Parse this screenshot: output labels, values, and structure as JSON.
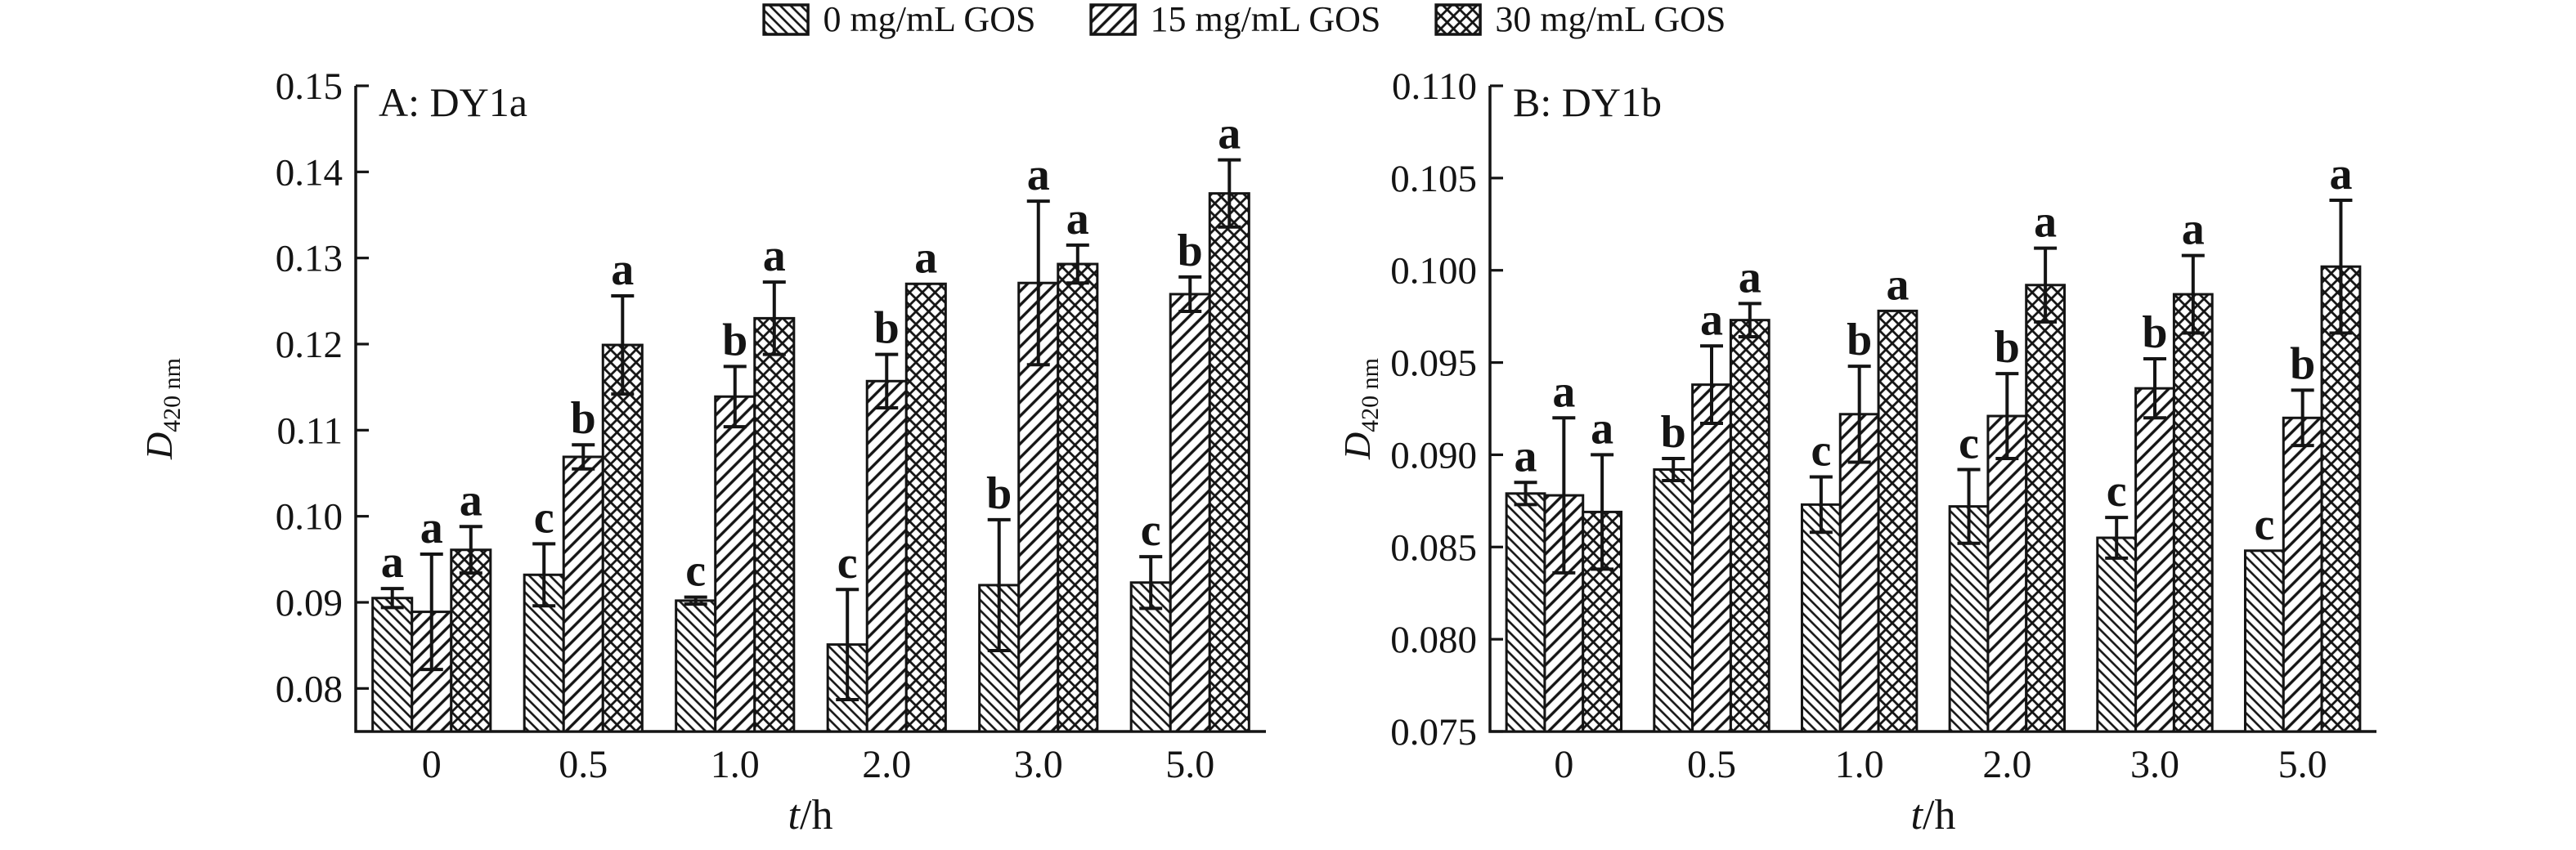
{
  "figure": {
    "background": "#ffffff",
    "ink": "#141414"
  },
  "legend": {
    "items": [
      {
        "label": "0 mg/mL GOS",
        "pattern": "diagonal-forward"
      },
      {
        "label": "15 mg/mL GOS",
        "pattern": "diagonal-backward"
      },
      {
        "label": "30 mg/mL GOS",
        "pattern": "crosshatch"
      }
    ]
  },
  "axis_labels": {
    "x_var": "t",
    "x_unit": "/h",
    "y_var": "D",
    "y_sub": "420 nm"
  },
  "chart_data": [
    {
      "type": "bar",
      "title": "A: DY1a",
      "xlabel": "t/h",
      "ylabel": "D420 nm",
      "categories": [
        "0",
        "0.5",
        "1.0",
        "2.0",
        "3.0",
        "5.0"
      ],
      "ylim": [
        0.075,
        0.15
      ],
      "yticks": [
        "0.08",
        "0.09",
        "0.10",
        "0.11",
        "0.12",
        "0.13",
        "0.14",
        "0.15"
      ],
      "grid": false,
      "legend_position": "top-center",
      "series": [
        {
          "name": "0 mg/mL GOS",
          "values": [
            0.0905,
            0.0932,
            0.0902,
            0.0851,
            0.092,
            0.0923
          ],
          "errors": [
            0.0011,
            0.0036,
            0.0004,
            0.0064,
            0.0076,
            0.003
          ],
          "letters": [
            "a",
            "c",
            "c",
            "c",
            "b",
            "c"
          ]
        },
        {
          "name": "15 mg/mL GOS",
          "values": [
            0.0889,
            0.1069,
            0.1139,
            0.1157,
            0.1271,
            0.1258
          ],
          "errors": [
            0.0067,
            0.0014,
            0.0035,
            0.0031,
            0.0095,
            0.002
          ],
          "letters": [
            "a",
            "b",
            "b",
            "b",
            "a",
            "b"
          ]
        },
        {
          "name": "30 mg/mL GOS",
          "values": [
            0.0961,
            0.1199,
            0.123,
            0.127,
            0.1293,
            0.1375
          ],
          "errors": [
            0.0027,
            0.0057,
            0.0042,
            0.0,
            0.0022,
            0.0039
          ],
          "letters": [
            "a",
            "a",
            "a",
            "a",
            "a",
            "a"
          ]
        }
      ]
    },
    {
      "type": "bar",
      "title": "B: DY1b",
      "xlabel": "t/h",
      "ylabel": "D420 nm",
      "categories": [
        "0",
        "0.5",
        "1.0",
        "2.0",
        "3.0",
        "5.0"
      ],
      "ylim": [
        0.075,
        0.11
      ],
      "yticks": [
        "0.075",
        "0.080",
        "0.085",
        "0.090",
        "0.095",
        "0.100",
        "0.105",
        "0.110"
      ],
      "grid": false,
      "legend_position": "top-center",
      "series": [
        {
          "name": "0 mg/mL GOS",
          "values": [
            0.0879,
            0.0892,
            0.0873,
            0.0872,
            0.0855,
            0.0848
          ],
          "errors": [
            0.0006,
            0.0006,
            0.0015,
            0.002,
            0.0011,
            0.0
          ],
          "letters": [
            "a",
            "b",
            "c",
            "c",
            "c",
            "c"
          ]
        },
        {
          "name": "15 mg/mL GOS",
          "values": [
            0.0878,
            0.0938,
            0.0922,
            0.0921,
            0.0936,
            0.092
          ],
          "errors": [
            0.0042,
            0.0021,
            0.0026,
            0.0023,
            0.0016,
            0.0015
          ],
          "letters": [
            "a",
            "a",
            "b",
            "b",
            "b",
            "b"
          ]
        },
        {
          "name": "30 mg/mL GOS",
          "values": [
            0.0869,
            0.0973,
            0.0978,
            0.0992,
            0.0987,
            0.1002
          ],
          "errors": [
            0.0031,
            0.0009,
            0.0,
            0.002,
            0.0021,
            0.0036
          ],
          "letters": [
            "a",
            "a",
            "a",
            "a",
            "a",
            "a"
          ]
        }
      ]
    }
  ]
}
